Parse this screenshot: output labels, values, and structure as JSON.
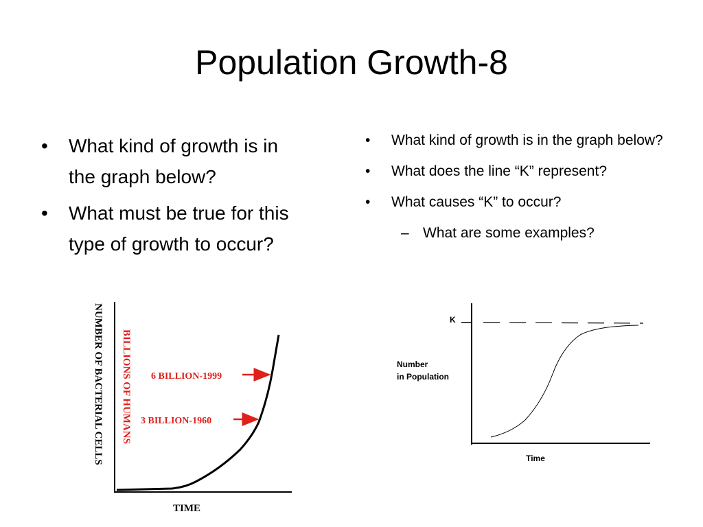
{
  "header": {
    "title": "Population Growth-8"
  },
  "left": {
    "bullets": [
      "What kind of growth is in the graph below?",
      "What must be true for this type of growth to occur?"
    ],
    "figure": {
      "y_label": "NUMBER OF BACTERIAL CELLS",
      "inner_label": "BILLIONS OF HUMANS",
      "annotations": [
        "6 BILLION-1999",
        "3 BILLION-1960"
      ],
      "x_label": "TIME"
    }
  },
  "right": {
    "bullets": [
      "What kind of growth is in the graph below?",
      "What does the line “K” represent?",
      "What causes “K” to occur?"
    ],
    "sub_bullets": [
      "What are some examples?"
    ],
    "figure": {
      "k_label": "K",
      "y_label": [
        "Number",
        "in Population"
      ],
      "x_label": "Time"
    }
  }
}
